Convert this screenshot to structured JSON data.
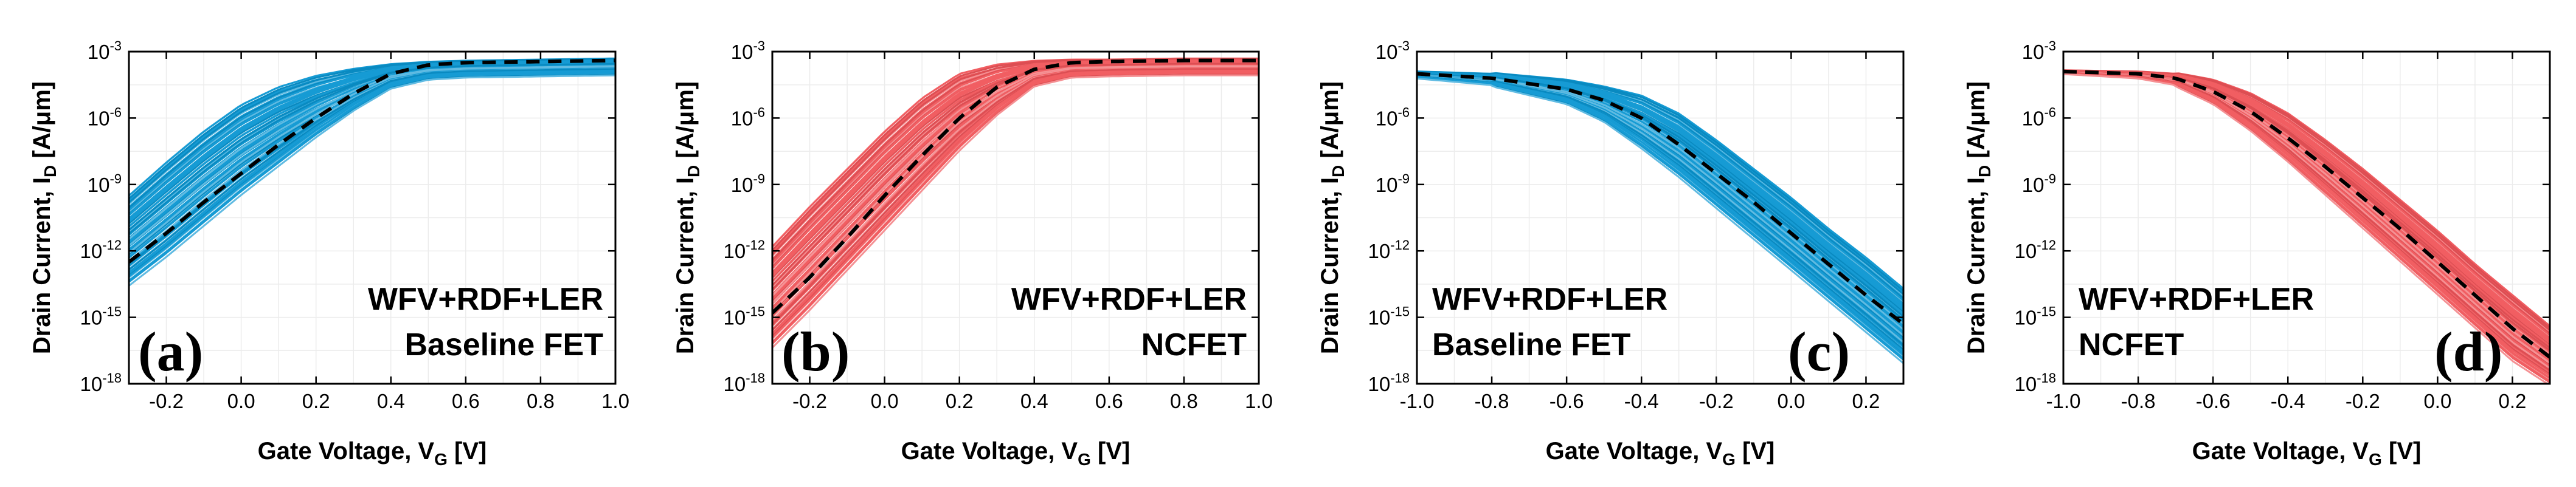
{
  "chart_data": [
    {
      "panel": "(a)",
      "type": "line",
      "xlabel": "Gate Voltage, V_G [V]",
      "ylabel": "Drain Current, I_D [A/μm]",
      "xlim": [
        -0.3,
        1.0
      ],
      "ylim": [
        1e-18,
        0.001
      ],
      "yscale": "log",
      "x_ticks": [
        "-0.2",
        "0.0",
        "0.2",
        "0.4",
        "0.6",
        "0.8",
        "1.0"
      ],
      "y_ticks": [
        "-18",
        "-15",
        "-12",
        "-9",
        "-6",
        "-3"
      ],
      "annotation": [
        "WFV+RDF+LER",
        "Baseline FET"
      ],
      "band_color": "#0a96d2",
      "mean_line_style": "black dashed",
      "mean_curve": {
        "x": [
          -0.3,
          -0.2,
          -0.1,
          0.0,
          0.1,
          0.2,
          0.3,
          0.4,
          0.5,
          0.6,
          0.8,
          1.0
        ],
        "log10_y": [
          -12.5,
          -11.2,
          -9.8,
          -8.5,
          -7.2,
          -6.0,
          -4.9,
          -4.0,
          -3.6,
          -3.5,
          -3.45,
          -3.4
        ]
      },
      "band_upper": {
        "x": [
          -0.3,
          -0.2,
          -0.1,
          0.0,
          0.1,
          0.2,
          0.3,
          0.4,
          0.5,
          0.6,
          0.8,
          1.0
        ],
        "log10_y": [
          -9.5,
          -8.0,
          -6.6,
          -5.4,
          -4.6,
          -4.1,
          -3.8,
          -3.6,
          -3.5,
          -3.45,
          -3.4,
          -3.35
        ]
      },
      "band_lower": {
        "x": [
          -0.3,
          -0.2,
          -0.1,
          0.0,
          0.1,
          0.2,
          0.3,
          0.4,
          0.5,
          0.6,
          0.8,
          1.0
        ],
        "log10_y": [
          -13.5,
          -12.2,
          -10.8,
          -9.4,
          -8.1,
          -6.8,
          -5.6,
          -4.6,
          -4.2,
          -4.1,
          -4.05,
          -4.0
        ]
      }
    },
    {
      "panel": "(b)",
      "type": "line",
      "xlabel": "Gate Voltage, V_G [V]",
      "ylabel": "Drain Current, I_D [A/μm]",
      "xlim": [
        -0.3,
        1.0
      ],
      "ylim": [
        1e-18,
        0.001
      ],
      "yscale": "log",
      "x_ticks": [
        "-0.2",
        "0.0",
        "0.2",
        "0.4",
        "0.6",
        "0.8",
        "1.0"
      ],
      "y_ticks": [
        "-18",
        "-15",
        "-12",
        "-9",
        "-6",
        "-3"
      ],
      "annotation": [
        "WFV+RDF+LER",
        "NCFET"
      ],
      "band_color": "#f0555a",
      "mean_line_style": "black dashed",
      "mean_curve": {
        "x": [
          -0.3,
          -0.2,
          -0.1,
          0.0,
          0.1,
          0.2,
          0.3,
          0.4,
          0.5,
          0.6,
          0.8,
          1.0
        ],
        "log10_y": [
          -14.8,
          -13.2,
          -11.4,
          -9.5,
          -7.7,
          -6.0,
          -4.6,
          -3.8,
          -3.5,
          -3.45,
          -3.4,
          -3.4
        ]
      },
      "band_upper": {
        "x": [
          -0.3,
          -0.2,
          -0.1,
          0.0,
          0.1,
          0.2,
          0.3,
          0.4,
          0.5,
          0.6,
          0.8,
          1.0
        ],
        "log10_y": [
          -11.8,
          -10.0,
          -8.3,
          -6.6,
          -5.1,
          -4.0,
          -3.6,
          -3.45,
          -3.4,
          -3.4,
          -3.35,
          -3.35
        ]
      },
      "band_lower": {
        "x": [
          -0.3,
          -0.2,
          -0.1,
          0.0,
          0.1,
          0.2,
          0.3,
          0.4,
          0.5,
          0.6,
          0.8,
          1.0
        ],
        "log10_y": [
          -16.3,
          -14.6,
          -12.8,
          -11.0,
          -9.2,
          -7.4,
          -5.8,
          -4.5,
          -4.1,
          -4.05,
          -4.0,
          -4.0
        ]
      }
    },
    {
      "panel": "(c)",
      "type": "line",
      "xlabel": "Gate Voltage, V_G [V]",
      "ylabel": "Drain Current, I_D [A/μm]",
      "xlim": [
        -1.0,
        0.3
      ],
      "ylim": [
        1e-18,
        0.001
      ],
      "yscale": "log",
      "x_ticks": [
        "-1.0",
        "-0.8",
        "-0.6",
        "-0.4",
        "-0.2",
        "0.0",
        "0.2"
      ],
      "y_ticks": [
        "-18",
        "-15",
        "-12",
        "-9",
        "-6",
        "-3"
      ],
      "annotation": [
        "WFV+RDF+LER",
        "Baseline FET"
      ],
      "band_color": "#0a96d2",
      "mean_line_style": "black dashed",
      "mean_curve": {
        "x": [
          -1.0,
          -0.8,
          -0.6,
          -0.5,
          -0.4,
          -0.3,
          -0.2,
          -0.1,
          0.0,
          0.1,
          0.2,
          0.3
        ],
        "log10_y": [
          -4.0,
          -4.2,
          -4.7,
          -5.2,
          -6.0,
          -7.2,
          -8.5,
          -9.8,
          -11.2,
          -12.6,
          -14.0,
          -15.3
        ]
      },
      "band_upper": {
        "x": [
          -1.0,
          -0.8,
          -0.6,
          -0.5,
          -0.4,
          -0.3,
          -0.2,
          -0.1,
          0.0,
          0.1,
          0.2,
          0.3
        ],
        "log10_y": [
          -3.9,
          -4.0,
          -4.3,
          -4.6,
          -5.0,
          -5.8,
          -7.0,
          -8.3,
          -9.6,
          -11.0,
          -12.3,
          -13.7
        ]
      },
      "band_lower": {
        "x": [
          -1.0,
          -0.8,
          -0.6,
          -0.5,
          -0.4,
          -0.3,
          -0.2,
          -0.1,
          0.0,
          0.1,
          0.2,
          0.3
        ],
        "log10_y": [
          -4.2,
          -4.5,
          -5.3,
          -6.1,
          -7.3,
          -8.6,
          -10.0,
          -11.4,
          -12.8,
          -14.2,
          -15.6,
          -17.0
        ]
      }
    },
    {
      "panel": "(d)",
      "type": "line",
      "xlabel": "Gate Voltage, V_G [V]",
      "ylabel": "Drain Current, I_D [A/μm]",
      "xlim": [
        -1.0,
        0.3
      ],
      "ylim": [
        1e-18,
        0.001
      ],
      "yscale": "log",
      "x_ticks": [
        "-1.0",
        "-0.8",
        "-0.6",
        "-0.4",
        "-0.2",
        "0.0",
        "0.2"
      ],
      "y_ticks": [
        "-18",
        "-15",
        "-12",
        "-9",
        "-6",
        "-3"
      ],
      "annotation": [
        "WFV+RDF+LER",
        "NCFET"
      ],
      "band_color": "#f0555a",
      "mean_line_style": "black dashed",
      "mean_curve": {
        "x": [
          -1.0,
          -0.8,
          -0.7,
          -0.6,
          -0.5,
          -0.4,
          -0.3,
          -0.2,
          -0.1,
          0.0,
          0.1,
          0.2,
          0.3
        ],
        "log10_y": [
          -3.9,
          -4.0,
          -4.2,
          -4.8,
          -5.7,
          -6.9,
          -8.2,
          -9.6,
          -11.0,
          -12.5,
          -14.0,
          -15.5,
          -16.8
        ]
      },
      "band_upper": {
        "x": [
          -1.0,
          -0.8,
          -0.7,
          -0.6,
          -0.5,
          -0.4,
          -0.3,
          -0.2,
          -0.1,
          0.0,
          0.1,
          0.2,
          0.3
        ],
        "log10_y": [
          -3.85,
          -3.9,
          -4.0,
          -4.3,
          -4.9,
          -5.8,
          -7.0,
          -8.3,
          -9.7,
          -11.1,
          -12.6,
          -14.0,
          -15.4
        ]
      },
      "band_lower": {
        "x": [
          -1.0,
          -0.8,
          -0.7,
          -0.6,
          -0.5,
          -0.4,
          -0.3,
          -0.2,
          -0.1,
          0.0,
          0.1,
          0.2,
          0.3
        ],
        "log10_y": [
          -4.0,
          -4.2,
          -4.5,
          -5.3,
          -6.5,
          -7.9,
          -9.4,
          -10.9,
          -12.4,
          -13.9,
          -15.4,
          -16.9,
          -18.0
        ]
      }
    }
  ]
}
